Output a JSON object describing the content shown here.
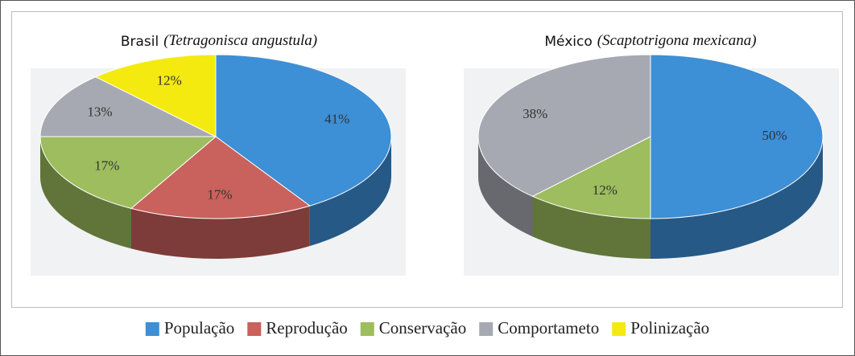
{
  "chart_data": [
    {
      "type": "pie",
      "title": "Brasil",
      "species": "(Tetragonisca angustula)",
      "categories": [
        "População",
        "Reprodução",
        "Conservação",
        "Comportameto",
        "Polinização"
      ],
      "values": [
        41,
        17,
        17,
        13,
        12
      ],
      "value_labels": [
        "41%",
        "17%",
        "17%",
        "13%",
        "12%"
      ],
      "colors": [
        "#3d8fd6",
        "#c9615c",
        "#9dbd5e",
        "#a7a9b2",
        "#f4ea10"
      ]
    },
    {
      "type": "pie",
      "title": "México",
      "species": "(Scaptotrigona mexicana)",
      "categories": [
        "População",
        "Conservação",
        "Comportameto"
      ],
      "values": [
        50,
        12,
        38
      ],
      "value_labels": [
        "50%",
        "12%",
        "38%"
      ],
      "colors": [
        "#3d8fd6",
        "#9dbd5e",
        "#a7a9b2"
      ]
    }
  ],
  "legend": {
    "items": [
      {
        "name": "População",
        "color": "#3d8fd6"
      },
      {
        "name": "Reprodução",
        "color": "#c9615c"
      },
      {
        "name": "Conservação",
        "color": "#9dbd5e"
      },
      {
        "name": "Comportameto",
        "color": "#a7a9b2"
      },
      {
        "name": "Polinização",
        "color": "#f4ea10"
      }
    ]
  }
}
